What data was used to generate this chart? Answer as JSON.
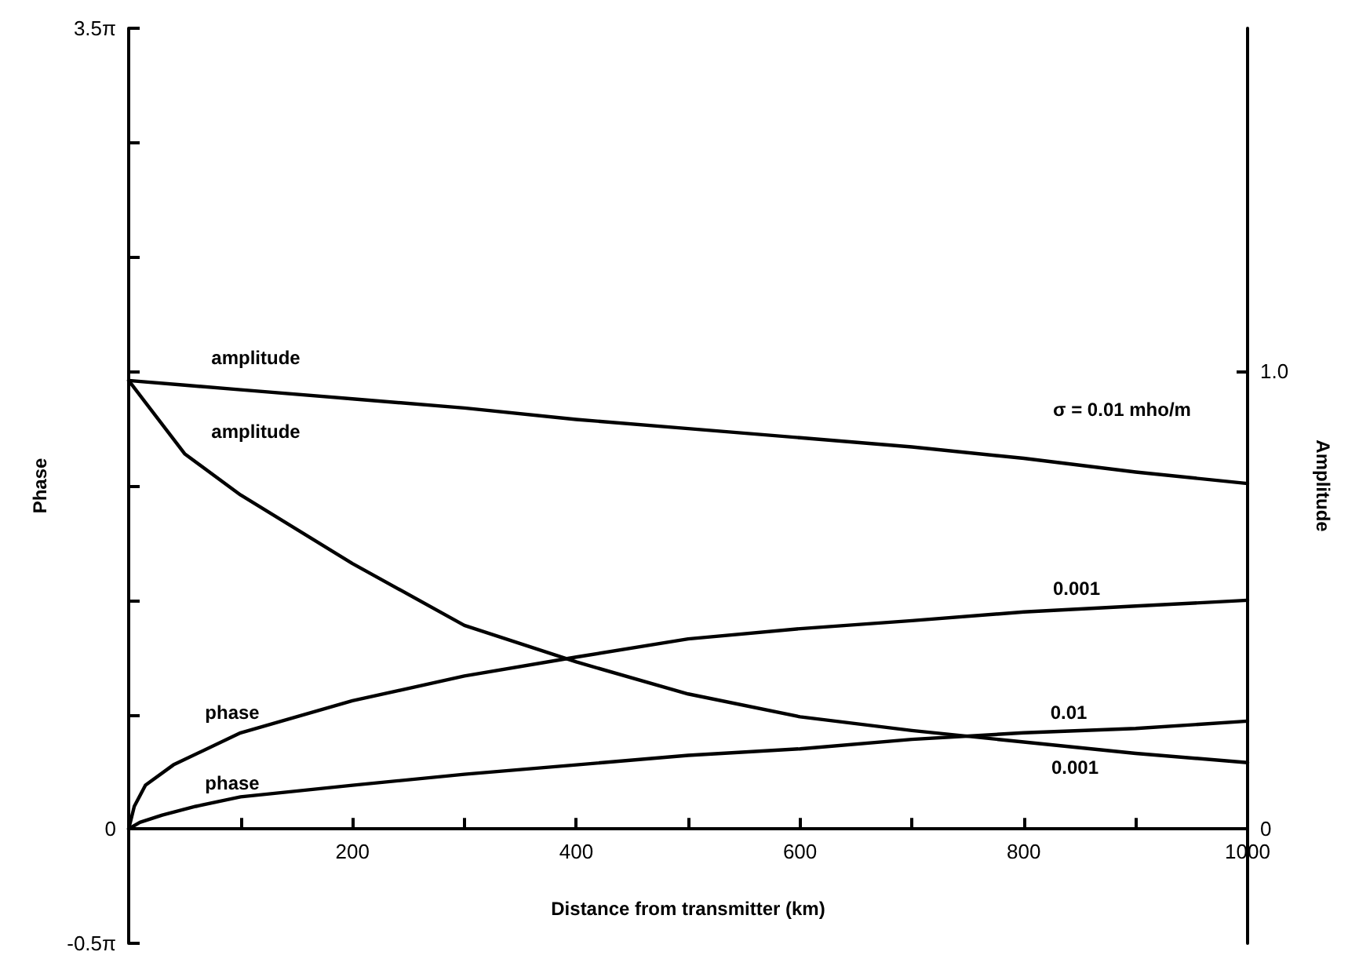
{
  "chart_data": {
    "type": "line",
    "xlabel": "Distance from transmitter (km)",
    "ylabel": "Phase",
    "y2label": "Amplitude",
    "x": [
      0,
      50,
      100,
      200,
      300,
      400,
      500,
      600,
      700,
      800,
      900,
      1000
    ],
    "series": [
      {
        "color": "#000000",
        "axis": "y2",
        "values": [
          0.98,
          0.97,
          0.96,
          0.94,
          0.92,
          0.895,
          0.875,
          0.855,
          0.835,
          0.81,
          0.78,
          0.755
        ]
      },
      {
        "color": "#000000",
        "axis": "y2",
        "values": [
          0.98,
          0.82,
          0.73,
          0.58,
          0.445,
          0.365,
          0.295,
          0.245,
          0.215,
          0.19,
          0.165,
          0.145
        ]
      },
      {
        "color": "#000000",
        "x": [
          0,
          5,
          15,
          40,
          100,
          200,
          300,
          400,
          500,
          600,
          700,
          800,
          900,
          1000
        ],
        "values": [
          0,
          0.31,
          0.6,
          0.88,
          1.32,
          1.76,
          2.1,
          2.36,
          2.61,
          2.75,
          2.86,
          2.98,
          3.06,
          3.14
        ]
      },
      {
        "color": "#000000",
        "x": [
          0,
          10,
          30,
          60,
          100,
          200,
          300,
          400,
          500,
          600,
          700,
          800,
          900,
          1000
        ],
        "values": [
          0,
          0.09,
          0.19,
          0.31,
          0.44,
          0.6,
          0.75,
          0.88,
          1.01,
          1.1,
          1.23,
          1.32,
          1.38,
          1.48
        ]
      }
    ],
    "annotations": [
      "amplitude",
      "amplitude",
      "phase",
      "phase",
      "σ = 0.01 mho/m",
      "0.001",
      "0.01",
      "0.001"
    ],
    "xlim": [
      0,
      1000
    ],
    "xticks": [
      {
        "value": 0,
        "label": null
      },
      {
        "value": 100,
        "label": null
      },
      200,
      {
        "value": 300,
        "label": null
      },
      400,
      {
        "value": 500,
        "label": null
      },
      600,
      {
        "value": 700,
        "label": null
      },
      800,
      {
        "value": 900,
        "label": null
      },
      1000
    ],
    "ylim": [
      -1.5708,
      10.9956
    ],
    "yticks": [
      {
        "value": -1.5708,
        "label": "-0.5π"
      },
      0,
      {
        "value": 1.5708,
        "label": null
      },
      {
        "value": 3.1416,
        "label": null
      },
      {
        "value": 4.7124,
        "label": null
      },
      {
        "value": 6.2832,
        "label": null
      },
      {
        "value": 7.854,
        "label": null
      },
      {
        "value": 9.4248,
        "label": null
      },
      {
        "value": 10.9956,
        "label": "3.5π"
      }
    ],
    "y2lim": [
      -0.25,
      1.75
    ],
    "y2ticks": [
      0,
      {
        "value": 1,
        "label": "1.0"
      }
    ],
    "marker": "none",
    "line_style": "solid"
  }
}
